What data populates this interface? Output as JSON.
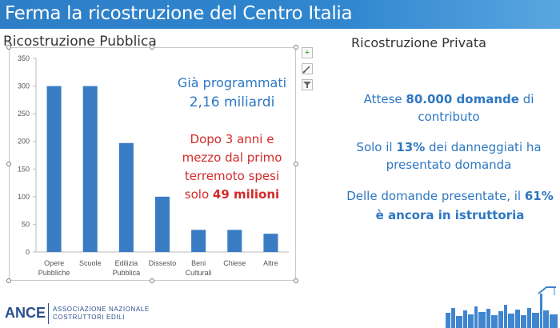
{
  "title": "Ferma la ricostruzione del Centro Italia",
  "left_heading": "Ricostruzione Pubblica",
  "right_heading": "Ricostruzione Privata",
  "chart_data": {
    "type": "bar",
    "categories": [
      "Opere Pubbliche",
      "Scuole",
      "Edilizia Pubblica",
      "Dissesto",
      "Beni Culturali",
      "Chiese",
      "Altre"
    ],
    "category_lines": [
      [
        "Opere",
        "Pubbliche"
      ],
      [
        "Scuole"
      ],
      [
        "Edilizia",
        "Pubblica"
      ],
      [
        "Dissesto"
      ],
      [
        "Beni",
        "Culturali"
      ],
      [
        "Chiese"
      ],
      [
        "Altre"
      ]
    ],
    "values": [
      300,
      300,
      197,
      100,
      40,
      40,
      33
    ],
    "ylim": [
      0,
      350
    ],
    "yticks": [
      0,
      50,
      100,
      150,
      200,
      250,
      300,
      350
    ],
    "bar_color": "#3a7cc4",
    "grid": false
  },
  "chart_tools": {
    "add_icon": "plus-icon",
    "style_icon": "brush-icon",
    "filter_icon": "filter-icon"
  },
  "callouts": {
    "programmed_line1": "Già programmati",
    "programmed_line2": "2,16 miliardi",
    "spent_line1": "Dopo 3 anni e",
    "spent_line2": "mezzo dal primo",
    "spent_line3": "terremoto spesi",
    "spent_line4_prefix": "solo ",
    "spent_line4_value": "49 milioni"
  },
  "private": {
    "p1_prefix": "Attese ",
    "p1_value": "80.000 domande",
    "p1_suffix": " di",
    "p1_line2": "contributo",
    "p2_prefix": "Solo il ",
    "p2_value": "13%",
    "p2_suffix": " dei danneggiati ha",
    "p2_line2": "presentato domanda",
    "p3_prefix": "Delle domande presentate, il ",
    "p3_value": "61%",
    "p3_line2": "è ancora in istruttoria"
  },
  "footer": {
    "logo": "ANCE",
    "sub1": "ASSOCIAZIONE NAZIONALE",
    "sub2": "COSTRUTTORI EDILI"
  },
  "colors": {
    "accent_blue": "#2e77c2",
    "highlight_red": "#d22b2b",
    "title_bar": "#2f86cf"
  }
}
